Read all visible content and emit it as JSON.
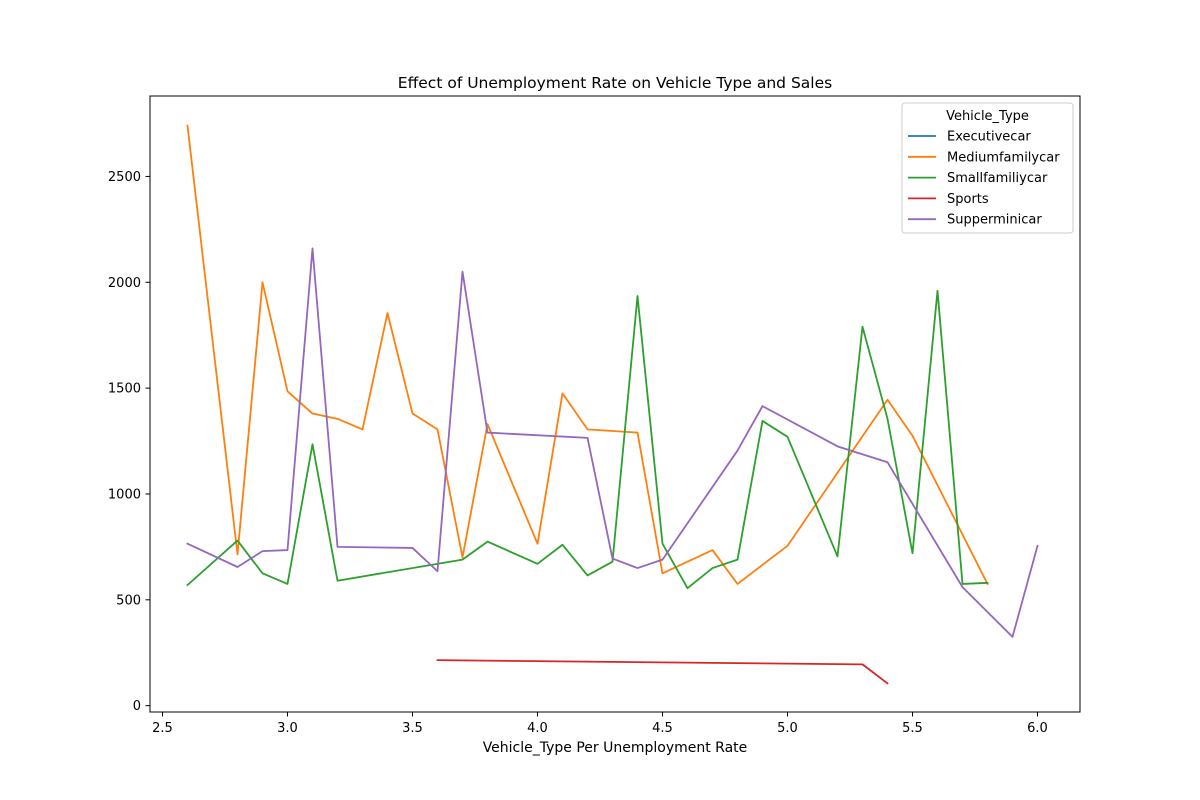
{
  "chart_data": {
    "type": "line",
    "title": "Effect of Unemployment Rate on Vehicle Type and Sales",
    "xlabel": "Vehicle_Type Per Unemployment Rate",
    "ylabel": "",
    "xlim": [
      2.45,
      6.17
    ],
    "ylim": [
      -30,
      2880
    ],
    "xticks": [
      2.5,
      3.0,
      3.5,
      4.0,
      4.5,
      5.0,
      5.5,
      6.0
    ],
    "xtick_labels": [
      "2.5",
      "3.0",
      "3.5",
      "4.0",
      "4.5",
      "5.0",
      "5.5",
      "6.0"
    ],
    "yticks": [
      0,
      500,
      1000,
      1500,
      2000,
      2500
    ],
    "ytick_labels": [
      "0",
      "500",
      "1000",
      "1500",
      "2000",
      "2500"
    ],
    "grid": false,
    "legend": {
      "title": "Vehicle_Type",
      "position": "top-right"
    },
    "series": [
      {
        "name": "Executivecar",
        "color": "#1f77b4",
        "points": []
      },
      {
        "name": "Mediumfamilycar",
        "color": "#ff7f0e",
        "points": [
          [
            2.6,
            2740
          ],
          [
            2.8,
            715
          ],
          [
            2.9,
            2000
          ],
          [
            3.0,
            1485
          ],
          [
            3.1,
            1380
          ],
          [
            3.2,
            1355
          ],
          [
            3.3,
            1305
          ],
          [
            3.4,
            1855
          ],
          [
            3.5,
            1380
          ],
          [
            3.6,
            1305
          ],
          [
            3.7,
            700
          ],
          [
            3.8,
            1330
          ],
          [
            4.0,
            765
          ],
          [
            4.1,
            1475
          ],
          [
            4.2,
            1305
          ],
          [
            4.4,
            1290
          ],
          [
            4.5,
            625
          ],
          [
            4.7,
            735
          ],
          [
            4.8,
            575
          ],
          [
            5.0,
            755
          ],
          [
            5.4,
            1445
          ],
          [
            5.5,
            1275
          ],
          [
            5.8,
            575
          ]
        ]
      },
      {
        "name": "Smallfamiliycar",
        "color": "#2ca02c",
        "points": [
          [
            2.6,
            570
          ],
          [
            2.8,
            780
          ],
          [
            2.9,
            625
          ],
          [
            3.0,
            575
          ],
          [
            3.1,
            1235
          ],
          [
            3.2,
            590
          ],
          [
            3.7,
            690
          ],
          [
            3.8,
            775
          ],
          [
            4.0,
            670
          ],
          [
            4.1,
            760
          ],
          [
            4.2,
            615
          ],
          [
            4.3,
            680
          ],
          [
            4.4,
            1935
          ],
          [
            4.5,
            765
          ],
          [
            4.6,
            555
          ],
          [
            4.7,
            650
          ],
          [
            4.8,
            690
          ],
          [
            4.9,
            1345
          ],
          [
            5.0,
            1270
          ],
          [
            5.2,
            705
          ],
          [
            5.3,
            1790
          ],
          [
            5.4,
            1355
          ],
          [
            5.5,
            720
          ],
          [
            5.6,
            1960
          ],
          [
            5.7,
            575
          ],
          [
            5.8,
            580
          ]
        ]
      },
      {
        "name": "Sports",
        "color": "#d62728",
        "points": [
          [
            3.6,
            215
          ],
          [
            5.3,
            195
          ],
          [
            5.4,
            105
          ]
        ]
      },
      {
        "name": "Supperminicar",
        "color": "#9467bd",
        "points": [
          [
            2.6,
            765
          ],
          [
            2.8,
            655
          ],
          [
            2.9,
            730
          ],
          [
            3.0,
            735
          ],
          [
            3.1,
            2160
          ],
          [
            3.2,
            750
          ],
          [
            3.5,
            745
          ],
          [
            3.6,
            635
          ],
          [
            3.7,
            2050
          ],
          [
            3.8,
            1290
          ],
          [
            4.2,
            1265
          ],
          [
            4.3,
            695
          ],
          [
            4.4,
            650
          ],
          [
            4.5,
            690
          ],
          [
            4.8,
            1205
          ],
          [
            4.9,
            1415
          ],
          [
            5.2,
            1225
          ],
          [
            5.4,
            1150
          ],
          [
            5.7,
            560
          ],
          [
            5.9,
            325
          ],
          [
            6.0,
            755
          ]
        ]
      }
    ]
  }
}
